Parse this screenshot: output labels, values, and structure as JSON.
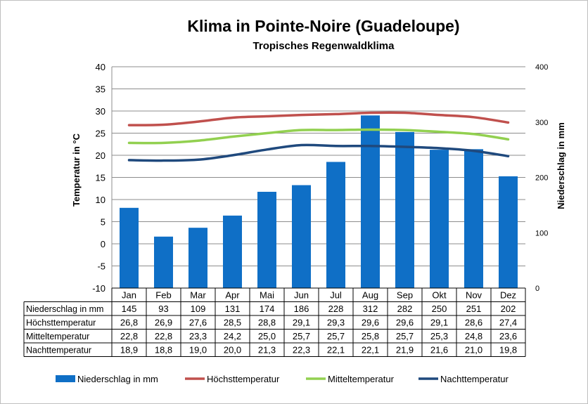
{
  "chart_data": {
    "type": "bar",
    "title": "Klima in Pointe-Noire (Guadeloupe)",
    "subtitle": "Tropisches Regenwaldklima",
    "ylabel": "Temperatur in °C",
    "y2label": "Niederschlag in mm",
    "ylim": [
      -10,
      40
    ],
    "y_ticks": [
      "40",
      "35",
      "30",
      "25",
      "20",
      "15",
      "10",
      "5",
      "0",
      "-5",
      "-10"
    ],
    "y2lim": [
      0,
      400
    ],
    "y2_ticks": [
      "400",
      "300",
      "200",
      "100",
      "0"
    ],
    "categories": [
      "Jan",
      "Feb",
      "Mar",
      "Apr",
      "Mai",
      "Jun",
      "Jul",
      "Aug",
      "Sep",
      "Okt",
      "Nov",
      "Dez"
    ],
    "grid": true,
    "legend_position": "bottom",
    "series": [
      {
        "name": "Niederschlag in mm",
        "kind": "bar",
        "axis": "right",
        "color": "#0f6fc6",
        "values": [
          145,
          93,
          109,
          131,
          174,
          186,
          228,
          312,
          282,
          250,
          251,
          202
        ],
        "labels": [
          "145",
          "93",
          "109",
          "131",
          "174",
          "186",
          "228",
          "312",
          "282",
          "250",
          "251",
          "202"
        ]
      },
      {
        "name": "Höchsttemperatur",
        "kind": "line",
        "axis": "left",
        "color": "#c0504d",
        "values": [
          26.8,
          26.9,
          27.6,
          28.5,
          28.8,
          29.1,
          29.3,
          29.6,
          29.6,
          29.1,
          28.6,
          27.4
        ],
        "labels": [
          "26,8",
          "26,9",
          "27,6",
          "28,5",
          "28,8",
          "29,1",
          "29,3",
          "29,6",
          "29,6",
          "29,1",
          "28,6",
          "27,4"
        ]
      },
      {
        "name": "Mitteltemperatur",
        "kind": "line",
        "axis": "left",
        "color": "#92d050",
        "values": [
          22.8,
          22.8,
          23.3,
          24.2,
          25.0,
          25.7,
          25.7,
          25.8,
          25.7,
          25.3,
          24.8,
          23.6
        ],
        "labels": [
          "22,8",
          "22,8",
          "23,3",
          "24,2",
          "25,0",
          "25,7",
          "25,7",
          "25,8",
          "25,7",
          "25,3",
          "24,8",
          "23,6"
        ]
      },
      {
        "name": "Nachttemperatur",
        "kind": "line",
        "axis": "left",
        "color": "#1f497d",
        "values": [
          18.9,
          18.8,
          19.0,
          20.0,
          21.3,
          22.3,
          22.1,
          22.1,
          21.9,
          21.6,
          21.0,
          19.8
        ],
        "labels": [
          "18,9",
          "18,8",
          "19,0",
          "20,0",
          "21,3",
          "22,3",
          "22,1",
          "22,1",
          "21,9",
          "21,6",
          "21,0",
          "19,8"
        ]
      }
    ]
  }
}
